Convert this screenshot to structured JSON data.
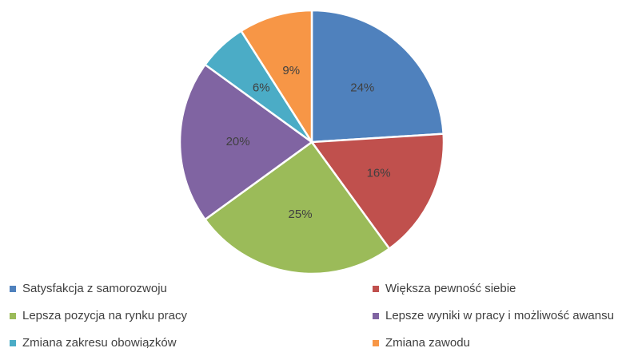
{
  "chart_data": {
    "type": "pie",
    "categories": [
      "Satysfakcja z samorozwoju",
      "Większa pewność siebie",
      "Lepsza pozycja na rynku pracy",
      "Lepsze wyniki w pracy i możliwość awansu",
      "Zmiana zakresu obowiązków",
      "Zmiana zawodu"
    ],
    "values": [
      24,
      16,
      25,
      20,
      6,
      9
    ],
    "value_labels": [
      "24%",
      "16%",
      "25%",
      "20%",
      "6%",
      "9%"
    ],
    "colors": [
      "#4f81bd",
      "#c0504d",
      "#9bbb59",
      "#8064a2",
      "#4bacc6",
      "#f79646"
    ],
    "legend": "bottom"
  }
}
